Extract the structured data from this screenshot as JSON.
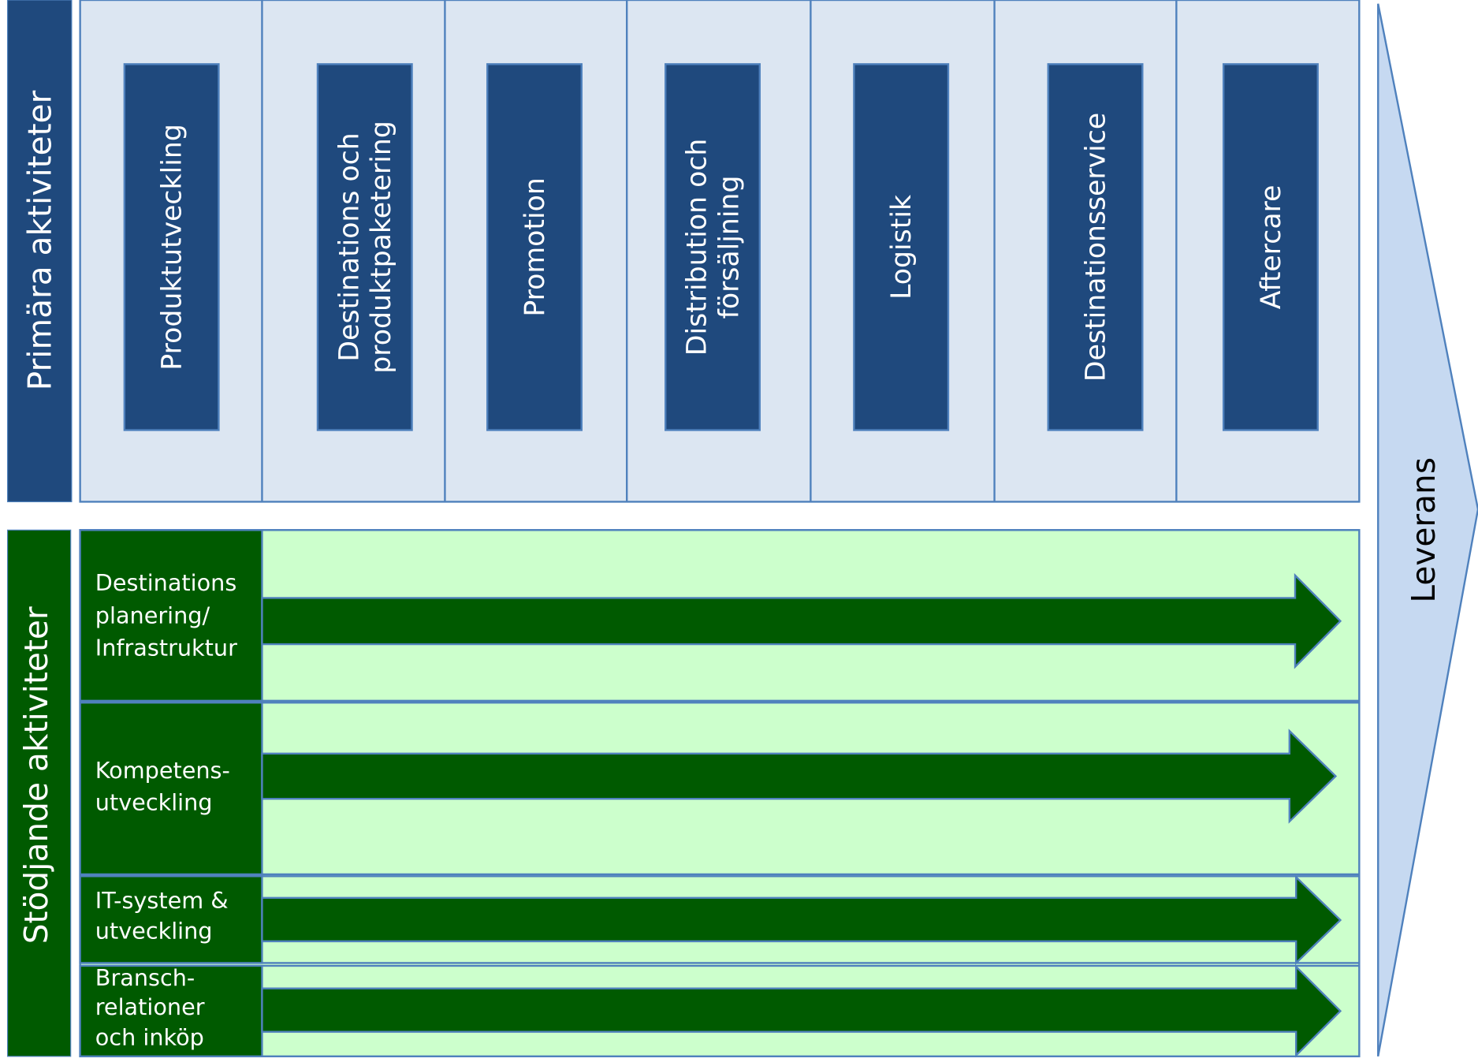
{
  "primary": {
    "label": "Primära aktiviteter",
    "activities": [
      [
        "Produktutveckling"
      ],
      [
        "Destinations och",
        "produktpaketering"
      ],
      [
        "Promotion"
      ],
      [
        "Distribution och",
        "försäljning"
      ],
      [
        "Logistik"
      ],
      [
        "Destinationsservice"
      ],
      [
        "Aftercare"
      ]
    ]
  },
  "support": {
    "label": "Stödjande aktiviteter",
    "activities": [
      [
        "Destinations",
        "planering/",
        "Infrastruktur"
      ],
      [
        "Kompetens-",
        "utveckling"
      ],
      [
        "IT-system  &",
        "utveckling"
      ],
      [
        "Bransch-",
        "relationer",
        "och inköp"
      ]
    ]
  },
  "output": "Leverans"
}
